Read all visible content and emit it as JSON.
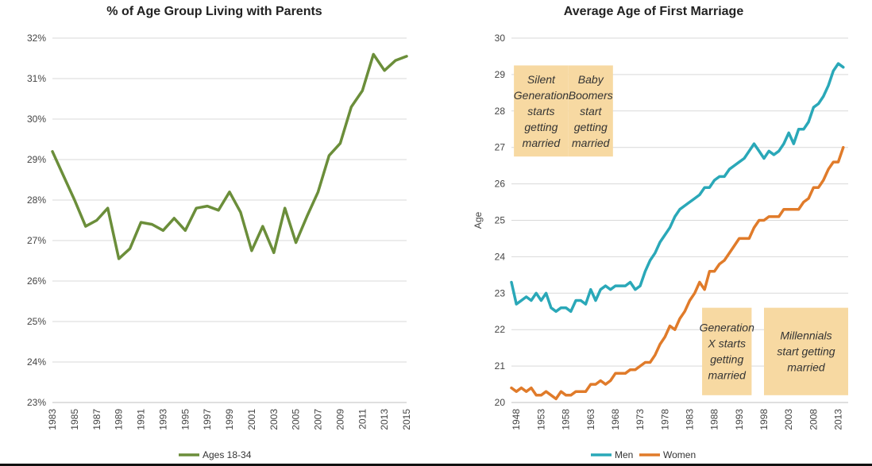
{
  "chart_data": [
    {
      "type": "line",
      "title": "% of Age Group Living with Parents",
      "ylabel": "",
      "xlabel": "",
      "ylim": [
        23,
        32
      ],
      "yticks": [
        "23%",
        "24%",
        "25%",
        "26%",
        "27%",
        "28%",
        "29%",
        "30%",
        "31%",
        "32%"
      ],
      "xlim": [
        1983,
        2015
      ],
      "xticks": [
        "1983",
        "1985",
        "1987",
        "1989",
        "1991",
        "1993",
        "1995",
        "1997",
        "1999",
        "2001",
        "2003",
        "2005",
        "2007",
        "2009",
        "2011",
        "2013",
        "2015"
      ],
      "grid": true,
      "legend_position": "bottom",
      "series": [
        {
          "name": "Ages 18-34",
          "color": "#6b8e3a",
          "x": [
            1983,
            1984,
            1985,
            1986,
            1987,
            1988,
            1989,
            1990,
            1991,
            1992,
            1993,
            1994,
            1995,
            1996,
            1997,
            1998,
            1999,
            2000,
            2001,
            2002,
            2003,
            2004,
            2005,
            2006,
            2007,
            2008,
            2009,
            2010,
            2011,
            2012,
            2013,
            2014,
            2015
          ],
          "y": [
            29.2,
            28.6,
            28.0,
            27.35,
            27.5,
            27.8,
            26.55,
            26.8,
            27.45,
            27.4,
            27.25,
            27.55,
            27.25,
            27.8,
            27.85,
            27.75,
            28.2,
            27.7,
            26.75,
            27.35,
            26.7,
            27.8,
            26.95,
            27.6,
            28.2,
            29.1,
            29.4,
            30.3,
            30.7,
            31.6,
            31.2,
            31.45,
            31.55
          ]
        }
      ]
    },
    {
      "type": "line",
      "title": "Average Age of First Marriage",
      "ylabel": "Age",
      "xlabel": "",
      "ylim": [
        20,
        30
      ],
      "yticks": [
        "20",
        "21",
        "22",
        "23",
        "24",
        "25",
        "26",
        "27",
        "28",
        "29",
        "30"
      ],
      "xlim": [
        1947,
        2015
      ],
      "xticks": [
        "1948",
        "1953",
        "1958",
        "1963",
        "1968",
        "1973",
        "1978",
        "1983",
        "1988",
        "1993",
        "1998",
        "2003",
        "2008",
        "2013"
      ],
      "grid": true,
      "legend_position": "bottom",
      "annotations": [
        {
          "text": "Silent Generation starts getting married",
          "lines": [
            "Silent",
            "Generation",
            "starts",
            "getting",
            "married"
          ],
          "x_range": [
            1947.5,
            1958.5
          ],
          "y_range": [
            26.75,
            29.25
          ]
        },
        {
          "text": "Baby Boomers start getting married",
          "lines": [
            "Baby",
            "Boomers",
            "start",
            "getting",
            "married"
          ],
          "x_range": [
            1958.5,
            1967.5
          ],
          "y_range": [
            26.75,
            29.25
          ]
        },
        {
          "text": "Generation X starts getting married",
          "lines": [
            "Generation",
            "X starts",
            "getting",
            "married"
          ],
          "x_range": [
            1985.5,
            1995.5
          ],
          "y_range": [
            20.2,
            22.6
          ]
        },
        {
          "text": "Millennials start getting married",
          "lines": [
            "Millennials",
            "start getting",
            "married"
          ],
          "x_range": [
            1998,
            2015
          ],
          "y_range": [
            20.2,
            22.6
          ]
        }
      ],
      "series": [
        {
          "name": "Men",
          "color": "#2aa8b8",
          "x": [
            1947,
            1948,
            1949,
            1950,
            1951,
            1952,
            1953,
            1954,
            1955,
            1956,
            1957,
            1958,
            1959,
            1960,
            1961,
            1962,
            1963,
            1964,
            1965,
            1966,
            1967,
            1968,
            1969,
            1970,
            1971,
            1972,
            1973,
            1974,
            1975,
            1976,
            1977,
            1978,
            1979,
            1980,
            1981,
            1982,
            1983,
            1984,
            1985,
            1986,
            1987,
            1988,
            1989,
            1990,
            1991,
            1992,
            1993,
            1994,
            1995,
            1996,
            1997,
            1998,
            1999,
            2000,
            2001,
            2002,
            2003,
            2004,
            2005,
            2006,
            2007,
            2008,
            2009,
            2010,
            2011,
            2012,
            2013,
            2014
          ],
          "y": [
            23.3,
            22.7,
            22.8,
            22.9,
            22.8,
            23.0,
            22.8,
            23.0,
            22.6,
            22.5,
            22.6,
            22.6,
            22.5,
            22.8,
            22.8,
            22.7,
            23.1,
            22.8,
            23.1,
            23.2,
            23.1,
            23.2,
            23.2,
            23.2,
            23.3,
            23.1,
            23.2,
            23.6,
            23.9,
            24.1,
            24.4,
            24.6,
            24.8,
            25.1,
            25.3,
            25.4,
            25.5,
            25.6,
            25.7,
            25.9,
            25.9,
            26.1,
            26.2,
            26.2,
            26.4,
            26.5,
            26.6,
            26.7,
            26.9,
            27.1,
            26.9,
            26.7,
            26.9,
            26.8,
            26.9,
            27.1,
            27.4,
            27.1,
            27.5,
            27.5,
            27.7,
            28.1,
            28.2,
            28.4,
            28.7,
            29.1,
            29.3,
            29.2
          ]
        },
        {
          "name": "Women",
          "color": "#e07b2a",
          "x": [
            1947,
            1948,
            1949,
            1950,
            1951,
            1952,
            1953,
            1954,
            1955,
            1956,
            1957,
            1958,
            1959,
            1960,
            1961,
            1962,
            1963,
            1964,
            1965,
            1966,
            1967,
            1968,
            1969,
            1970,
            1971,
            1972,
            1973,
            1974,
            1975,
            1976,
            1977,
            1978,
            1979,
            1980,
            1981,
            1982,
            1983,
            1984,
            1985,
            1986,
            1987,
            1988,
            1989,
            1990,
            1991,
            1992,
            1993,
            1994,
            1995,
            1996,
            1997,
            1998,
            1999,
            2000,
            2001,
            2002,
            2003,
            2004,
            2005,
            2006,
            2007,
            2008,
            2009,
            2010,
            2011,
            2012,
            2013,
            2014
          ],
          "y": [
            20.4,
            20.3,
            20.4,
            20.3,
            20.4,
            20.2,
            20.2,
            20.3,
            20.2,
            20.1,
            20.3,
            20.2,
            20.2,
            20.3,
            20.3,
            20.3,
            20.5,
            20.5,
            20.6,
            20.5,
            20.6,
            20.8,
            20.8,
            20.8,
            20.9,
            20.9,
            21.0,
            21.1,
            21.1,
            21.3,
            21.6,
            21.8,
            22.1,
            22.0,
            22.3,
            22.5,
            22.8,
            23.0,
            23.3,
            23.1,
            23.6,
            23.6,
            23.8,
            23.9,
            24.1,
            24.3,
            24.5,
            24.5,
            24.5,
            24.8,
            25.0,
            25.0,
            25.1,
            25.1,
            25.1,
            25.3,
            25.3,
            25.3,
            25.3,
            25.5,
            25.6,
            25.9,
            25.9,
            26.1,
            26.4,
            26.6,
            26.6,
            27.0
          ]
        }
      ]
    }
  ]
}
